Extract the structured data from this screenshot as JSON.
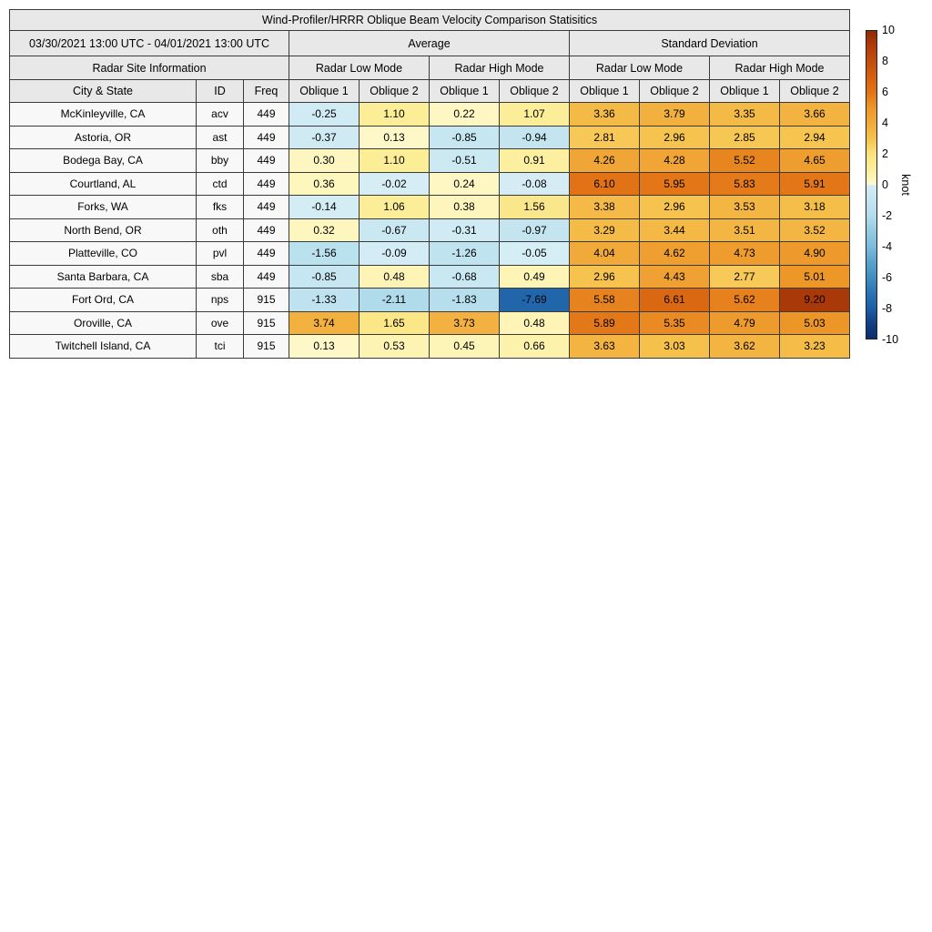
{
  "chart_data": {
    "type": "heatmap",
    "title": "Wind-Profiler/HRRR Oblique Beam Velocity Comparison Statisitics",
    "period": "03/30/2021 13:00 UTC - 04/01/2021 13:00 UTC",
    "group_average": "Average",
    "group_std": "Standard Deviation",
    "site_info": "Radar Site Information",
    "mode_low": "Radar Low Mode",
    "mode_high": "Radar High Mode",
    "col_city": "City & State",
    "col_id": "ID",
    "col_freq": "Freq",
    "col_oblique1": "Oblique 1",
    "col_oblique2": "Oblique 2",
    "value_columns": [
      "Average Radar Low Mode Oblique 1",
      "Average Radar Low Mode Oblique 2",
      "Average Radar High Mode Oblique 1",
      "Average Radar High Mode Oblique 2",
      "Standard Deviation Radar Low Mode Oblique 1",
      "Standard Deviation Radar Low Mode Oblique 2",
      "Standard Deviation Radar High Mode Oblique 1",
      "Standard Deviation Radar High Mode Oblique 2"
    ],
    "rows": [
      {
        "city": "McKinleyville, CA",
        "id": "acv",
        "freq": "449",
        "values": [
          -0.25,
          1.1,
          0.22,
          1.07,
          3.36,
          3.79,
          3.35,
          3.66
        ]
      },
      {
        "city": "Astoria, OR",
        "id": "ast",
        "freq": "449",
        "values": [
          -0.37,
          0.13,
          -0.85,
          -0.94,
          2.81,
          2.96,
          2.85,
          2.94
        ]
      },
      {
        "city": "Bodega Bay, CA",
        "id": "bby",
        "freq": "449",
        "values": [
          0.3,
          1.1,
          -0.51,
          0.91,
          4.26,
          4.28,
          5.52,
          4.65
        ]
      },
      {
        "city": "Courtland, AL",
        "id": "ctd",
        "freq": "449",
        "values": [
          0.36,
          -0.02,
          0.24,
          -0.08,
          6.1,
          5.95,
          5.83,
          5.91
        ]
      },
      {
        "city": "Forks, WA",
        "id": "fks",
        "freq": "449",
        "values": [
          -0.14,
          1.06,
          0.38,
          1.56,
          3.38,
          2.96,
          3.53,
          3.18
        ]
      },
      {
        "city": "North Bend, OR",
        "id": "oth",
        "freq": "449",
        "values": [
          0.32,
          -0.67,
          -0.31,
          -0.97,
          3.29,
          3.44,
          3.51,
          3.52
        ]
      },
      {
        "city": "Platteville, CO",
        "id": "pvl",
        "freq": "449",
        "values": [
          -1.56,
          -0.09,
          -1.26,
          -0.05,
          4.04,
          4.62,
          4.73,
          4.9
        ]
      },
      {
        "city": "Santa Barbara, CA",
        "id": "sba",
        "freq": "449",
        "values": [
          -0.85,
          0.48,
          -0.68,
          0.49,
          2.96,
          4.43,
          2.77,
          5.01
        ]
      },
      {
        "city": "Fort Ord, CA",
        "id": "nps",
        "freq": "915",
        "values": [
          -1.33,
          -2.11,
          -1.83,
          -7.69,
          5.58,
          6.61,
          5.62,
          9.2
        ]
      },
      {
        "city": "Oroville, CA",
        "id": "ove",
        "freq": "915",
        "values": [
          3.74,
          1.65,
          3.73,
          0.48,
          5.89,
          5.35,
          4.79,
          5.03
        ]
      },
      {
        "city": "Twitchell Island, CA",
        "id": "tci",
        "freq": "915",
        "values": [
          0.13,
          0.53,
          0.45,
          0.66,
          3.63,
          3.03,
          3.62,
          3.23
        ]
      }
    ],
    "colorbar": {
      "label": "knot",
      "min": -10,
      "max": 10,
      "ticks": [
        10,
        8,
        6,
        4,
        2,
        0,
        -2,
        -4,
        -6,
        -8,
        -10
      ],
      "stops": [
        [
          -10,
          "#0a306b"
        ],
        [
          -9,
          "#143f85"
        ],
        [
          -8,
          "#1d5fa7"
        ],
        [
          -7,
          "#2b74b4"
        ],
        [
          -6,
          "#4190c2"
        ],
        [
          -5,
          "#5ba3cd"
        ],
        [
          -4,
          "#7cbcdc"
        ],
        [
          -3,
          "#94cbe2"
        ],
        [
          -2,
          "#b3ddec"
        ],
        [
          -1,
          "#c3e5f0"
        ],
        [
          -0.01,
          "#d6edf5"
        ],
        [
          0,
          "#fefad0"
        ],
        [
          1,
          "#fcee9a"
        ],
        [
          2,
          "#fbe27f"
        ],
        [
          3,
          "#f6c24c"
        ],
        [
          4,
          "#f1ab3b"
        ],
        [
          5,
          "#ed9729"
        ],
        [
          6,
          "#e27416"
        ],
        [
          7,
          "#d5600f"
        ],
        [
          8,
          "#c24e0c"
        ],
        [
          9,
          "#b23c0a"
        ],
        [
          10,
          "#8c2d04"
        ]
      ]
    },
    "decimals": 2
  }
}
